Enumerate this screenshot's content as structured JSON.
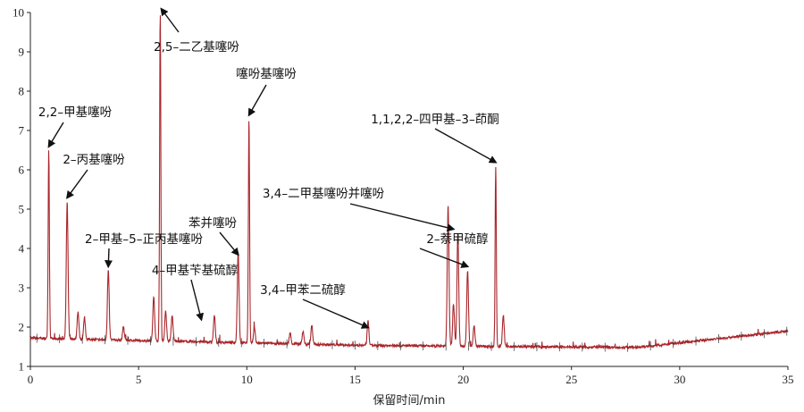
{
  "chart_data": {
    "type": "line",
    "title": "",
    "xlabel": "保留时间/min",
    "ylabel": "",
    "xlim": [
      0,
      35
    ],
    "ylim": [
      1,
      10
    ],
    "xticks": [
      "0",
      "5",
      "10",
      "15",
      "20",
      "25",
      "30",
      "35"
    ],
    "yticks": [
      "1",
      "2",
      "3",
      "4",
      "5",
      "6",
      "7",
      "8",
      "9",
      "10"
    ],
    "grid": false,
    "legend": "none",
    "series_color": "#a8262b",
    "peaks": [
      {
        "rt": 0.85,
        "h": 6.5
      },
      {
        "rt": 1.7,
        "h": 5.2
      },
      {
        "rt": 2.2,
        "h": 2.4
      },
      {
        "rt": 2.5,
        "h": 2.25
      },
      {
        "rt": 3.6,
        "h": 3.45
      },
      {
        "rt": 4.3,
        "h": 2.0
      },
      {
        "rt": 5.7,
        "h": 2.8
      },
      {
        "rt": 6.0,
        "h": 10.0
      },
      {
        "rt": 6.25,
        "h": 2.4
      },
      {
        "rt": 6.55,
        "h": 2.3
      },
      {
        "rt": 8.5,
        "h": 2.3
      },
      {
        "rt": 9.6,
        "h": 3.9
      },
      {
        "rt": 10.1,
        "h": 7.3
      },
      {
        "rt": 10.35,
        "h": 2.0
      },
      {
        "rt": 12.0,
        "h": 1.85
      },
      {
        "rt": 12.6,
        "h": 1.9
      },
      {
        "rt": 13.0,
        "h": 2.05
      },
      {
        "rt": 15.6,
        "h": 2.15
      },
      {
        "rt": 19.3,
        "h": 5.1
      },
      {
        "rt": 19.55,
        "h": 2.6
      },
      {
        "rt": 19.75,
        "h": 4.4
      },
      {
        "rt": 20.2,
        "h": 3.45
      },
      {
        "rt": 20.5,
        "h": 2.05
      },
      {
        "rt": 21.5,
        "h": 6.1
      },
      {
        "rt": 21.85,
        "h": 2.3
      }
    ],
    "annotations": [
      {
        "text": "2,5–二乙基噻吩",
        "target_rt": 6.05,
        "target_y": 10.0
      },
      {
        "text": "噻吩基噻吩",
        "target_rt": 10.1,
        "target_y": 7.3
      },
      {
        "text": "2,2–甲基噻吩",
        "target_rt": 0.85,
        "target_y": 6.5
      },
      {
        "text": "2–丙基噻吩",
        "target_rt": 1.7,
        "target_y": 5.2
      },
      {
        "text": "2–甲基–5–正丙基噻吩",
        "target_rt": 3.6,
        "target_y": 3.45
      },
      {
        "text": "苯并噻吩",
        "target_rt": 9.6,
        "target_y": 3.75
      },
      {
        "text": "4–甲基苄基硫醇",
        "target_rt": 7.9,
        "target_y": 2.1
      },
      {
        "text": "3,4–甲苯二硫醇",
        "target_rt": 15.6,
        "target_y": 1.9
      },
      {
        "text": "3,4–二甲基噻吩并噻吩",
        "target_rt": 19.55,
        "target_y": 4.4
      },
      {
        "text": "2–萘甲硫醇",
        "target_rt": 20.2,
        "target_y": 3.45
      },
      {
        "text": "1,1,2,2–四甲基–3–茚酮",
        "target_rt": 21.5,
        "target_y": 6.1
      }
    ]
  }
}
